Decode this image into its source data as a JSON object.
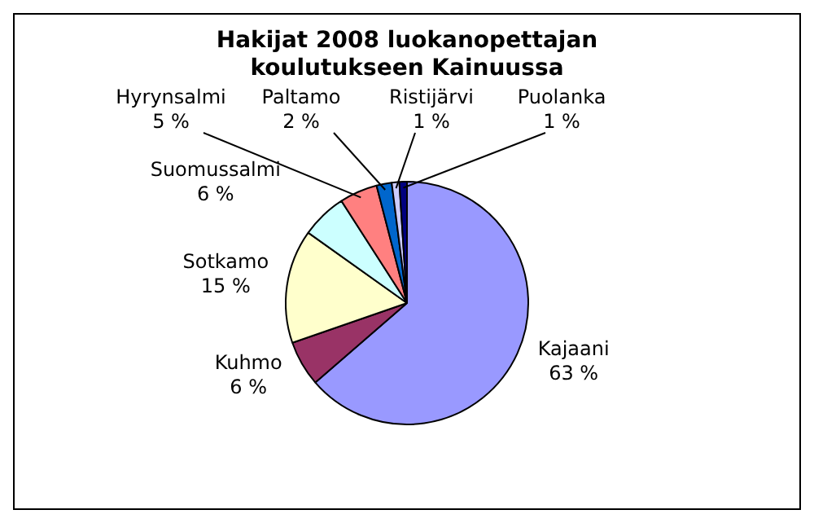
{
  "chart_data": {
    "type": "pie",
    "title": "Hakijat 2008 luokanopettajan koulutukseen Kainuussa",
    "categories": [
      "Kajaani",
      "Kuhmo",
      "Sotkamo",
      "Suomussalmi",
      "Hyrynsalmi",
      "Paltamo",
      "Ristijärvi",
      "Puolanka"
    ],
    "values": [
      63,
      6,
      15,
      6,
      5,
      2,
      1,
      1
    ],
    "value_labels": [
      "63 %",
      "6 %",
      "15 %",
      "6 %",
      "5 %",
      "2 %",
      "1 %",
      "1 %"
    ],
    "colors": [
      "#9999ff",
      "#993366",
      "#ffffcc",
      "#ccffff",
      "#ff8080",
      "#0066cc",
      "#ccccff",
      "#000080"
    ],
    "legend": false
  }
}
